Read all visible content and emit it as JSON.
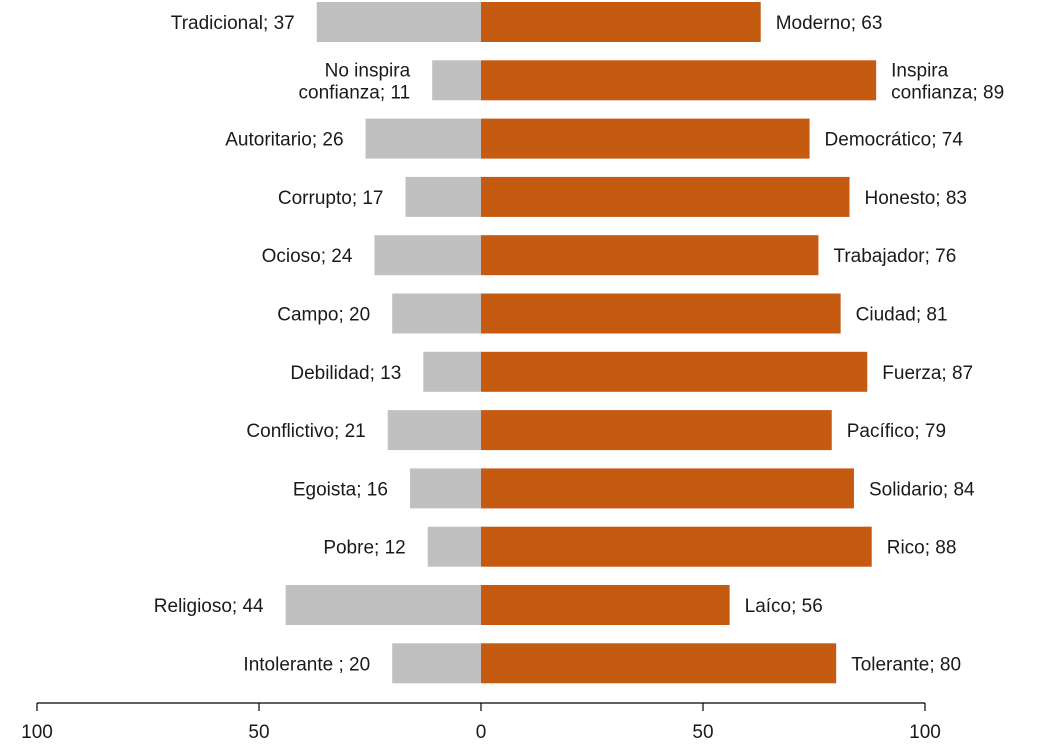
{
  "chart_data": {
    "type": "bar",
    "orientation": "horizontal-diverging",
    "rows": [
      {
        "left_label": "Tradicional; 37",
        "left": 37,
        "right_label": "Moderno; 63",
        "right": 63
      },
      {
        "left_label": "No inspira confianza; 11",
        "left": 11,
        "right_label": "Inspira confianza; 89",
        "right": 89
      },
      {
        "left_label": "Autoritario; 26",
        "left": 26,
        "right_label": "Democrático; 74",
        "right": 74
      },
      {
        "left_label": "Corrupto; 17",
        "left": 17,
        "right_label": "Honesto; 83",
        "right": 83
      },
      {
        "left_label": "Ocioso; 24",
        "left": 24,
        "right_label": "Trabajador; 76",
        "right": 76
      },
      {
        "left_label": "Campo; 20",
        "left": 20,
        "right_label": "Ciudad; 81",
        "right": 81
      },
      {
        "left_label": "Debilidad; 13",
        "left": 13,
        "right_label": "Fuerza; 87",
        "right": 87
      },
      {
        "left_label": "Conflictivo; 21",
        "left": 21,
        "right_label": "Pacífico; 79",
        "right": 79
      },
      {
        "left_label": "Egoista; 16",
        "left": 16,
        "right_label": "Solidario; 84",
        "right": 84
      },
      {
        "left_label": "Pobre; 12",
        "left": 12,
        "right_label": "Rico; 88",
        "right": 88
      },
      {
        "left_label": "Religioso; 44",
        "left": 44,
        "right_label": "Laíco; 56",
        "right": 56
      },
      {
        "left_label": "Intolerante ; 20",
        "left": 20,
        "right_label": "Tolerante; 80",
        "right": 80
      }
    ],
    "x_ticks": [
      {
        "value": -100,
        "label": "100"
      },
      {
        "value": -50,
        "label": "50"
      },
      {
        "value": 0,
        "label": "0"
      },
      {
        "value": 50,
        "label": "50"
      },
      {
        "value": 100,
        "label": "100"
      }
    ],
    "xlim": [
      -100,
      100
    ],
    "grid": false,
    "colors": {
      "left": "#c0c0c0",
      "right": "#c55a11",
      "text": "#1a1a1a",
      "axis": "#000000"
    }
  }
}
